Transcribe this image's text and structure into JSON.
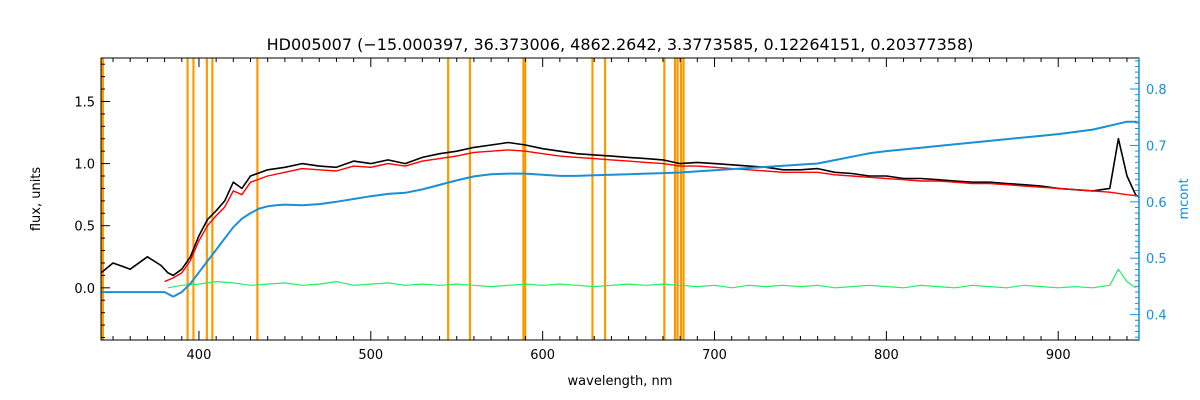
{
  "chart_data": {
    "type": "line",
    "title": "HD005007   (−15.000397, 36.373006, 4862.2642, 3.3773585, 0.12264151, 0.20377358)",
    "xlabel": "wavelength, nm",
    "ylabel": "flux, units",
    "ylabel_right": "mcont",
    "xlim": [
      343,
      947
    ],
    "ylim": [
      -0.42,
      1.85
    ],
    "ylim_right": [
      0.355,
      0.855
    ],
    "x_ticks": [
      400,
      500,
      600,
      700,
      800,
      900
    ],
    "y_ticks": [
      0.0,
      0.5,
      1.0,
      1.5
    ],
    "y_tick_labels": [
      "0.0",
      "0.5",
      "1.0",
      "1.5"
    ],
    "y_right_ticks": [
      0.4,
      0.5,
      0.6,
      0.7,
      0.8
    ],
    "y_right_tick_labels": [
      "0.4",
      "0.5",
      "0.6",
      "0.7",
      "0.8"
    ],
    "colors": {
      "observed": "#000000",
      "model": "#ff0000",
      "residual": "#22ee66",
      "continuum": "#1a8fd6",
      "masks": "#ff9900",
      "axis": "#000000",
      "axis_right": "#1a8fd6"
    },
    "mask_lines": [
      393.4,
      396.8,
      404.6,
      407.8,
      434.0,
      545.0,
      557.7,
      588.8,
      589.8,
      629.0,
      636.3,
      670.8,
      677.0,
      678.5,
      680.5,
      682.0
    ],
    "series": [
      {
        "key": "observed",
        "x": [
          343,
          350,
          360,
          370,
          378,
          382,
          385,
          390,
          395,
          400,
          405,
          410,
          415,
          420,
          425,
          430,
          440,
          450,
          460,
          470,
          480,
          490,
          500,
          510,
          520,
          530,
          540,
          550,
          560,
          570,
          580,
          590,
          600,
          610,
          620,
          630,
          640,
          650,
          660,
          670,
          680,
          690,
          700,
          710,
          720,
          730,
          740,
          750,
          760,
          770,
          780,
          790,
          800,
          810,
          820,
          830,
          840,
          850,
          860,
          870,
          880,
          890,
          900,
          910,
          920,
          930,
          935,
          940,
          945,
          947
        ],
        "y": [
          0.12,
          0.2,
          0.15,
          0.25,
          0.18,
          0.12,
          0.1,
          0.15,
          0.25,
          0.42,
          0.55,
          0.62,
          0.7,
          0.85,
          0.8,
          0.9,
          0.95,
          0.97,
          1.0,
          0.98,
          0.97,
          1.02,
          1.0,
          1.03,
          1.0,
          1.05,
          1.08,
          1.1,
          1.13,
          1.15,
          1.17,
          1.15,
          1.12,
          1.1,
          1.08,
          1.07,
          1.06,
          1.05,
          1.04,
          1.03,
          1.0,
          1.01,
          1.0,
          0.99,
          0.98,
          0.97,
          0.95,
          0.95,
          0.96,
          0.93,
          0.92,
          0.9,
          0.9,
          0.88,
          0.88,
          0.87,
          0.86,
          0.85,
          0.85,
          0.84,
          0.83,
          0.82,
          0.8,
          0.79,
          0.78,
          0.8,
          1.2,
          0.9,
          0.75,
          0.73
        ]
      },
      {
        "key": "model",
        "x": [
          380,
          385,
          390,
          395,
          400,
          405,
          410,
          415,
          420,
          425,
          430,
          440,
          450,
          460,
          470,
          480,
          490,
          500,
          510,
          520,
          530,
          540,
          550,
          560,
          570,
          580,
          590,
          600,
          610,
          620,
          630,
          640,
          650,
          660,
          670,
          680,
          690,
          700,
          710,
          720,
          730,
          740,
          750,
          760,
          770,
          780,
          790,
          800,
          810,
          820,
          830,
          840,
          850,
          860,
          870,
          880,
          890,
          900,
          910,
          920,
          930,
          940,
          947
        ],
        "y": [
          0.05,
          0.08,
          0.12,
          0.22,
          0.38,
          0.5,
          0.58,
          0.65,
          0.78,
          0.75,
          0.85,
          0.9,
          0.93,
          0.96,
          0.95,
          0.94,
          0.98,
          0.97,
          1.0,
          0.98,
          1.02,
          1.04,
          1.06,
          1.09,
          1.1,
          1.11,
          1.1,
          1.08,
          1.06,
          1.05,
          1.04,
          1.03,
          1.02,
          1.01,
          1.0,
          0.98,
          0.98,
          0.97,
          0.96,
          0.95,
          0.94,
          0.93,
          0.93,
          0.93,
          0.91,
          0.9,
          0.89,
          0.88,
          0.87,
          0.86,
          0.86,
          0.85,
          0.84,
          0.84,
          0.83,
          0.82,
          0.81,
          0.8,
          0.79,
          0.78,
          0.77,
          0.75,
          0.74
        ]
      },
      {
        "key": "continuum",
        "axis": "right",
        "x": [
          343,
          370,
          380,
          385,
          390,
          395,
          400,
          405,
          410,
          415,
          420,
          425,
          430,
          435,
          440,
          445,
          450,
          460,
          470,
          480,
          490,
          500,
          510,
          520,
          530,
          540,
          550,
          560,
          570,
          580,
          590,
          600,
          610,
          620,
          630,
          640,
          650,
          660,
          670,
          680,
          690,
          700,
          710,
          720,
          730,
          740,
          750,
          760,
          770,
          780,
          790,
          800,
          820,
          840,
          860,
          880,
          900,
          920,
          930,
          940,
          945,
          947
        ],
        "y": [
          0.44,
          0.44,
          0.44,
          0.432,
          0.44,
          0.455,
          0.475,
          0.495,
          0.515,
          0.535,
          0.555,
          0.57,
          0.58,
          0.588,
          0.592,
          0.594,
          0.595,
          0.594,
          0.596,
          0.6,
          0.605,
          0.61,
          0.614,
          0.616,
          0.622,
          0.63,
          0.638,
          0.645,
          0.649,
          0.65,
          0.65,
          0.648,
          0.646,
          0.646,
          0.647,
          0.648,
          0.649,
          0.65,
          0.651,
          0.652,
          0.654,
          0.656,
          0.658,
          0.66,
          0.662,
          0.664,
          0.666,
          0.668,
          0.674,
          0.68,
          0.686,
          0.69,
          0.696,
          0.702,
          0.708,
          0.714,
          0.72,
          0.728,
          0.735,
          0.742,
          0.742,
          0.74
        ]
      },
      {
        "key": "residual",
        "x": [
          382,
          390,
          400,
          410,
          420,
          430,
          440,
          450,
          460,
          470,
          480,
          490,
          500,
          510,
          520,
          530,
          540,
          550,
          560,
          570,
          580,
          590,
          600,
          610,
          620,
          630,
          640,
          650,
          660,
          670,
          680,
          690,
          700,
          710,
          720,
          730,
          740,
          750,
          760,
          770,
          780,
          790,
          800,
          810,
          820,
          830,
          840,
          850,
          860,
          870,
          880,
          890,
          900,
          910,
          920,
          930,
          935,
          940,
          945
        ],
        "y": [
          0.0,
          0.02,
          0.03,
          0.05,
          0.04,
          0.02,
          0.03,
          0.04,
          0.02,
          0.03,
          0.05,
          0.02,
          0.03,
          0.04,
          0.02,
          0.03,
          0.02,
          0.03,
          0.02,
          0.01,
          0.02,
          0.03,
          0.02,
          0.03,
          0.02,
          0.01,
          0.02,
          0.03,
          0.02,
          0.03,
          0.02,
          0.01,
          0.02,
          0.0,
          0.02,
          0.01,
          0.02,
          0.01,
          0.02,
          0.0,
          0.01,
          0.02,
          0.01,
          0.0,
          0.02,
          0.01,
          0.0,
          0.02,
          0.01,
          0.0,
          0.02,
          0.01,
          0.0,
          0.01,
          0.0,
          0.02,
          0.15,
          0.05,
          0.0
        ]
      }
    ]
  }
}
